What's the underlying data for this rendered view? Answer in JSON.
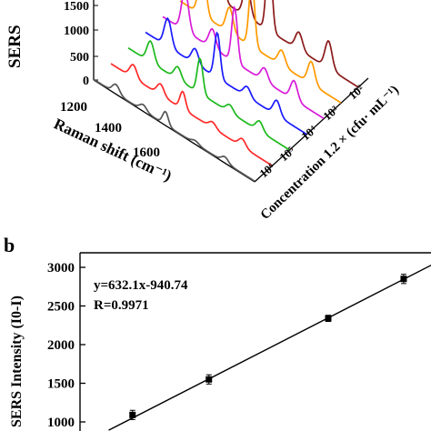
{
  "panel_b_label": "b",
  "chart_data": [
    {
      "type": "line",
      "subtype": "3d-waterfall",
      "panel": "",
      "xlabel": "Raman shift (cm⁻¹)",
      "ylabel": "SERS",
      "zlabel": "Concentration 1.2 × (cfu· mL⁻¹)",
      "x_ticks": [
        "1200",
        "1400",
        "1600"
      ],
      "y_ticks": [
        "0",
        "500",
        "1000",
        "1500"
      ],
      "z_ticks": [
        "10²",
        "10³",
        "10⁴",
        "10⁵",
        "10⁶"
      ],
      "series": [
        {
          "color": "#555555",
          "peak_heights": [
            180,
            120,
            260,
            60,
            110
          ]
        },
        {
          "color": "#ff2a2a",
          "peak_heights": [
            260,
            220,
            350,
            120,
            160
          ]
        },
        {
          "color": "#1db91d",
          "peak_heights": [
            420,
            250,
            700,
            150,
            200
          ]
        },
        {
          "color": "#1a1aff",
          "peak_heights": [
            560,
            300,
            900,
            200,
            300
          ]
        },
        {
          "color": "#d81bd8",
          "peak_heights": [
            800,
            380,
            1100,
            260,
            380
          ]
        },
        {
          "color": "#ff9900",
          "peak_heights": [
            1000,
            500,
            1300,
            300,
            450
          ]
        },
        {
          "color": "#8b1a1a",
          "peak_heights": [
            1300,
            650,
            1600,
            350,
            550
          ]
        }
      ],
      "peak_positions": [
        1140,
        1250,
        1340,
        1460,
        1580
      ]
    },
    {
      "type": "scatter",
      "panel": "b",
      "ylabel": "SERS Intensity (I0-I)",
      "ylim": [
        1000,
        3000
      ],
      "y_ticks": [
        "1000",
        "1500",
        "2000",
        "2500",
        "3000"
      ],
      "annotations": [
        "y=632.1x-940.74",
        "R=0.9971"
      ],
      "points": [
        {
          "x": 3.15,
          "y": 1090,
          "err": 60
        },
        {
          "x": 3.95,
          "y": 1550,
          "err": 60
        },
        {
          "x": 5.2,
          "y": 2340,
          "err": 40
        },
        {
          "x": 5.99,
          "y": 2850,
          "err": 60
        }
      ],
      "fit": {
        "slope": 632.1,
        "intercept": -940.74,
        "x_range": [
          2.9,
          6.3
        ]
      }
    }
  ]
}
